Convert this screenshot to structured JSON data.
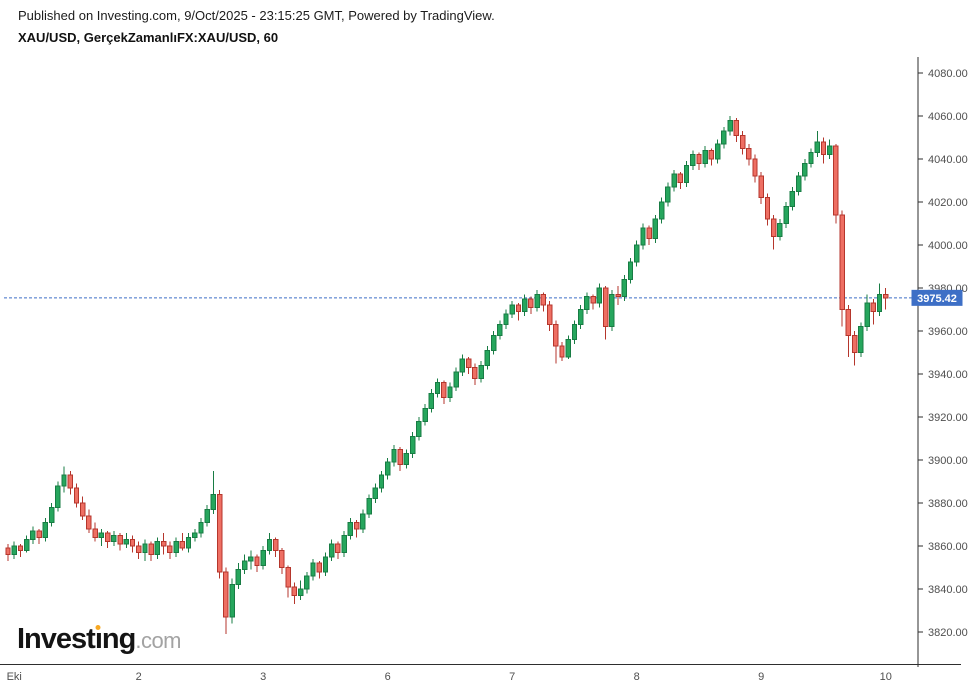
{
  "header": {
    "published_line": "Published on Investing.com, 9/Oct/2025 - 23:15:25 GMT, Powered by TradingView.",
    "instrument_line": "XAU/USD, GerçekZamanlıFX:XAU/USD, 60"
  },
  "logo": {
    "word_start": "Invest",
    "dotless_i": "ı",
    "word_end": "ng",
    "tld": ".com",
    "dot_color": "#f7a823"
  },
  "price_label": {
    "value": "3975.42"
  },
  "colors": {
    "up_fill": "#26a65d",
    "up_stroke": "#187c44",
    "down_fill": "#ee6f63",
    "down_stroke": "#b5362c",
    "accent_blue": "#3d6fc6",
    "axis_line": "#2e2e2e",
    "axis_text": "#4f4f4f"
  },
  "chart_data": {
    "type": "candlestick",
    "title": "XAU/USD, GerçekZamanlıFX:XAU/USD, 60",
    "symbol": "XAU/USD",
    "interval_minutes": 60,
    "last_price": 3975.42,
    "grid": false,
    "legend": false,
    "y_axis": {
      "min": 3820,
      "max": 4080,
      "step": 20,
      "side": "right",
      "label_format": "0.00"
    },
    "x_axis": {
      "labels": [
        {
          "text": "Eki",
          "bar": 1
        },
        {
          "text": "2",
          "bar": 21
        },
        {
          "text": "3",
          "bar": 41
        },
        {
          "text": "6",
          "bar": 61
        },
        {
          "text": "7",
          "bar": 81
        },
        {
          "text": "8",
          "bar": 101
        },
        {
          "text": "9",
          "bar": 121
        },
        {
          "text": "10",
          "bar": 141
        }
      ]
    },
    "ylim_visible": [
      3805,
      4087
    ],
    "candles_format": [
      "open",
      "high",
      "low",
      "close"
    ],
    "candles": [
      [
        3859,
        3861,
        3853,
        3856
      ],
      [
        3856,
        3862,
        3854,
        3860
      ],
      [
        3860,
        3861,
        3855,
        3858
      ],
      [
        3858,
        3865,
        3857,
        3863
      ],
      [
        3863,
        3869,
        3861,
        3867
      ],
      [
        3867,
        3868,
        3861,
        3864
      ],
      [
        3864,
        3873,
        3862,
        3871
      ],
      [
        3871,
        3880,
        3869,
        3878
      ],
      [
        3878,
        3890,
        3876,
        3888
      ],
      [
        3888,
        3897,
        3885,
        3893
      ],
      [
        3893,
        3895,
        3884,
        3887
      ],
      [
        3887,
        3889,
        3878,
        3880
      ],
      [
        3880,
        3883,
        3872,
        3874
      ],
      [
        3874,
        3877,
        3866,
        3868
      ],
      [
        3868,
        3871,
        3862,
        3864
      ],
      [
        3864,
        3868,
        3860,
        3866
      ],
      [
        3866,
        3867,
        3859,
        3862
      ],
      [
        3862,
        3867,
        3860,
        3865
      ],
      [
        3865,
        3866,
        3858,
        3861
      ],
      [
        3861,
        3866,
        3859,
        3863
      ],
      [
        3863,
        3865,
        3857,
        3860
      ],
      [
        3860,
        3862,
        3854,
        3857
      ],
      [
        3857,
        3863,
        3853,
        3861
      ],
      [
        3861,
        3862,
        3853,
        3856
      ],
      [
        3856,
        3864,
        3854,
        3862
      ],
      [
        3862,
        3866,
        3856,
        3860
      ],
      [
        3860,
        3862,
        3854,
        3857
      ],
      [
        3857,
        3864,
        3855,
        3862
      ],
      [
        3862,
        3866,
        3858,
        3859
      ],
      [
        3859,
        3866,
        3857,
        3864
      ],
      [
        3864,
        3868,
        3862,
        3866
      ],
      [
        3866,
        3873,
        3864,
        3871
      ],
      [
        3871,
        3879,
        3869,
        3877
      ],
      [
        3877,
        3895,
        3875,
        3884
      ],
      [
        3884,
        3886,
        3845,
        3848
      ],
      [
        3848,
        3850,
        3819,
        3827
      ],
      [
        3827,
        3845,
        3824,
        3842
      ],
      [
        3842,
        3852,
        3840,
        3849
      ],
      [
        3849,
        3856,
        3847,
        3853
      ],
      [
        3853,
        3858,
        3849,
        3855
      ],
      [
        3855,
        3856,
        3848,
        3851
      ],
      [
        3851,
        3860,
        3849,
        3858
      ],
      [
        3858,
        3866,
        3856,
        3863
      ],
      [
        3863,
        3864,
        3855,
        3858
      ],
      [
        3858,
        3859,
        3847,
        3850
      ],
      [
        3850,
        3851,
        3836,
        3841
      ],
      [
        3841,
        3843,
        3833,
        3837
      ],
      [
        3837,
        3844,
        3835,
        3840
      ],
      [
        3840,
        3848,
        3838,
        3846
      ],
      [
        3846,
        3854,
        3844,
        3852
      ],
      [
        3852,
        3853,
        3845,
        3848
      ],
      [
        3848,
        3857,
        3846,
        3855
      ],
      [
        3855,
        3863,
        3853,
        3861
      ],
      [
        3861,
        3862,
        3854,
        3857
      ],
      [
        3857,
        3867,
        3855,
        3865
      ],
      [
        3865,
        3873,
        3863,
        3871
      ],
      [
        3871,
        3872,
        3864,
        3868
      ],
      [
        3868,
        3877,
        3866,
        3875
      ],
      [
        3875,
        3884,
        3873,
        3882
      ],
      [
        3882,
        3889,
        3880,
        3887
      ],
      [
        3887,
        3895,
        3885,
        3893
      ],
      [
        3893,
        3901,
        3891,
        3899
      ],
      [
        3899,
        3907,
        3897,
        3905
      ],
      [
        3905,
        3906,
        3895,
        3898
      ],
      [
        3898,
        3905,
        3896,
        3903
      ],
      [
        3903,
        3913,
        3901,
        3911
      ],
      [
        3911,
        3920,
        3909,
        3918
      ],
      [
        3918,
        3926,
        3916,
        3924
      ],
      [
        3924,
        3933,
        3922,
        3931
      ],
      [
        3931,
        3938,
        3929,
        3936
      ],
      [
        3936,
        3937,
        3926,
        3929
      ],
      [
        3929,
        3936,
        3927,
        3934
      ],
      [
        3934,
        3943,
        3932,
        3941
      ],
      [
        3941,
        3949,
        3939,
        3947
      ],
      [
        3947,
        3948,
        3940,
        3943
      ],
      [
        3943,
        3945,
        3935,
        3938
      ],
      [
        3938,
        3946,
        3936,
        3944
      ],
      [
        3944,
        3953,
        3942,
        3951
      ],
      [
        3951,
        3960,
        3949,
        3958
      ],
      [
        3958,
        3965,
        3956,
        3963
      ],
      [
        3963,
        3970,
        3961,
        3968
      ],
      [
        3968,
        3974,
        3966,
        3972
      ],
      [
        3972,
        3973,
        3965,
        3969
      ],
      [
        3969,
        3977,
        3967,
        3975
      ],
      [
        3975,
        3976,
        3968,
        3971
      ],
      [
        3971,
        3979,
        3969,
        3977
      ],
      [
        3977,
        3978,
        3969,
        3972
      ],
      [
        3972,
        3974,
        3960,
        3963
      ],
      [
        3963,
        3965,
        3945,
        3953
      ],
      [
        3953,
        3955,
        3946,
        3948
      ],
      [
        3948,
        3958,
        3947,
        3956
      ],
      [
        3956,
        3965,
        3954,
        3963
      ],
      [
        3963,
        3972,
        3961,
        3970
      ],
      [
        3970,
        3978,
        3968,
        3976
      ],
      [
        3976,
        3977,
        3970,
        3973
      ],
      [
        3973,
        3982,
        3971,
        3980
      ],
      [
        3980,
        3981,
        3956,
        3962
      ],
      [
        3962,
        3979,
        3960,
        3977
      ],
      [
        3977,
        3981,
        3972,
        3976
      ],
      [
        3976,
        3986,
        3974,
        3984
      ],
      [
        3984,
        3994,
        3982,
        3992
      ],
      [
        3992,
        4002,
        3990,
        4000
      ],
      [
        4000,
        4010,
        3998,
        4008
      ],
      [
        4008,
        4009,
        4000,
        4003
      ],
      [
        4003,
        4014,
        4001,
        4012
      ],
      [
        4012,
        4022,
        4010,
        4020
      ],
      [
        4020,
        4029,
        4018,
        4027
      ],
      [
        4027,
        4035,
        4025,
        4033
      ],
      [
        4033,
        4034,
        4026,
        4029
      ],
      [
        4029,
        4039,
        4027,
        4037
      ],
      [
        4037,
        4044,
        4035,
        4042
      ],
      [
        4042,
        4043,
        4035,
        4038
      ],
      [
        4038,
        4046,
        4036,
        4044
      ],
      [
        4044,
        4045,
        4037,
        4040
      ],
      [
        4040,
        4049,
        4038,
        4047
      ],
      [
        4047,
        4055,
        4045,
        4053
      ],
      [
        4053,
        4060,
        4051,
        4058
      ],
      [
        4058,
        4059,
        4048,
        4051
      ],
      [
        4051,
        4053,
        4042,
        4045
      ],
      [
        4045,
        4047,
        4037,
        4040
      ],
      [
        4040,
        4042,
        4029,
        4032
      ],
      [
        4032,
        4034,
        4019,
        4022
      ],
      [
        4022,
        4024,
        4009,
        4012
      ],
      [
        4012,
        4014,
        3998,
        4004
      ],
      [
        4004,
        4012,
        4002,
        4010
      ],
      [
        4010,
        4020,
        4008,
        4018
      ],
      [
        4018,
        4027,
        4016,
        4025
      ],
      [
        4025,
        4034,
        4023,
        4032
      ],
      [
        4032,
        4040,
        4030,
        4038
      ],
      [
        4038,
        4045,
        4036,
        4043
      ],
      [
        4043,
        4053,
        4041,
        4048
      ],
      [
        4048,
        4050,
        4038,
        4042
      ],
      [
        4042,
        4049,
        4040,
        4046
      ],
      [
        4046,
        4047,
        4010,
        4014
      ],
      [
        4014,
        4016,
        3962,
        3970
      ],
      [
        3970,
        3972,
        3948,
        3958
      ],
      [
        3958,
        3960,
        3944,
        3950
      ],
      [
        3950,
        3964,
        3948,
        3962
      ],
      [
        3962,
        3977,
        3960,
        3973
      ],
      [
        3973,
        3975,
        3963,
        3969
      ],
      [
        3969,
        3982,
        3967,
        3977
      ],
      [
        3977,
        3980,
        3970,
        3975.42
      ]
    ]
  }
}
